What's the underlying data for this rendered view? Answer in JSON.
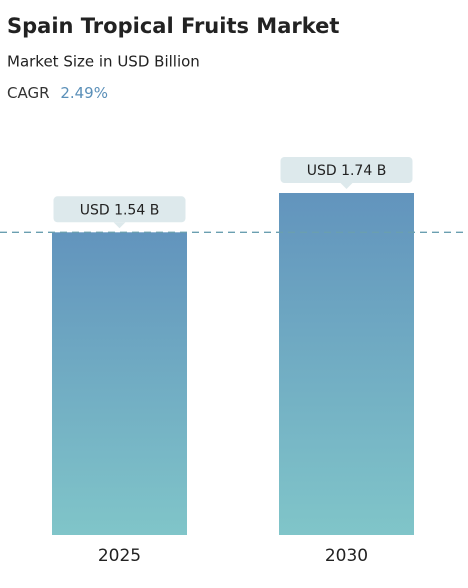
{
  "chart_data": {
    "type": "bar",
    "title": "Spain Tropical Fruits Market",
    "subtitle": "Market Size in USD Billion",
    "cagr_label": "CAGR",
    "cagr": "2.49%",
    "categories": [
      "2025",
      "2030"
    ],
    "values": [
      1.54,
      1.74
    ],
    "value_labels": [
      "USD 1.54 B",
      "USD 1.74 B"
    ],
    "color_top": "#6294bd",
    "color_bottom": "#80c5c9"
  }
}
